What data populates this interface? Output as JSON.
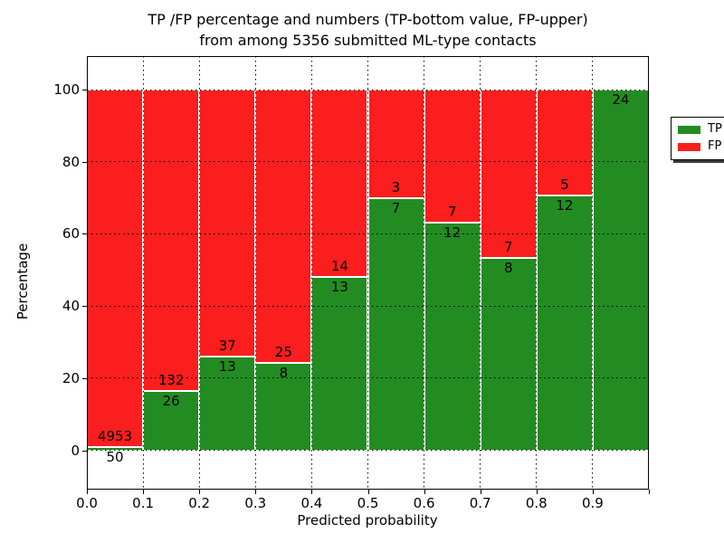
{
  "title": {
    "line1": "TP /FP percentage and numbers (TP-bottom value, FP-upper)",
    "line2": "from among 5356 submitted ML-type contacts"
  },
  "axes": {
    "xlabel": "Predicted probability",
    "ylabel": "Percentage"
  },
  "legend": {
    "position": "upper right",
    "items": [
      {
        "label": "TP",
        "color": "#228c22"
      },
      {
        "label": "FP",
        "color": "#fa1e1e"
      }
    ]
  },
  "chart_data": {
    "type": "bar",
    "stacked": true,
    "title": "TP /FP percentage and numbers (TP-bottom value, FP-upper)\nfrom among 5356 submitted ML-type contacts",
    "xlabel": "Predicted probability",
    "ylabel": "Percentage",
    "total_contacts": 5356,
    "x_tick_labels": [
      "0.0",
      "0.1",
      "0.2",
      "0.3",
      "0.4",
      "0.5",
      "0.6",
      "0.7",
      "0.8",
      "0.9"
    ],
    "y_ticks": [
      0,
      20,
      40,
      60,
      80,
      100
    ],
    "xlim": [
      0.0,
      1.0
    ],
    "ylim_display": [
      -10.9,
      109.3
    ],
    "grid": "dotted",
    "colors": {
      "tp": "#228c22",
      "fp": "#fa1e1e"
    },
    "bins": [
      {
        "x0": "0.0",
        "x1": "0.1",
        "tp": 50,
        "fp": 4953,
        "tp_pct": 1.0
      },
      {
        "x0": "0.1",
        "x1": "0.2",
        "tp": 26,
        "fp": 132,
        "tp_pct": 16.5
      },
      {
        "x0": "0.2",
        "x1": "0.3",
        "tp": 13,
        "fp": 37,
        "tp_pct": 26.0
      },
      {
        "x0": "0.3",
        "x1": "0.4",
        "tp": 8,
        "fp": 25,
        "tp_pct": 24.2
      },
      {
        "x0": "0.4",
        "x1": "0.5",
        "tp": 13,
        "fp": 14,
        "tp_pct": 48.1
      },
      {
        "x0": "0.5",
        "x1": "0.6",
        "tp": 7,
        "fp": 3,
        "tp_pct": 70.0
      },
      {
        "x0": "0.6",
        "x1": "0.7",
        "tp": 12,
        "fp": 7,
        "tp_pct": 63.2
      },
      {
        "x0": "0.7",
        "x1": "0.8",
        "tp": 8,
        "fp": 7,
        "tp_pct": 53.3
      },
      {
        "x0": "0.8",
        "x1": "0.9",
        "tp": 12,
        "fp": 5,
        "tp_pct": 70.6
      },
      {
        "x0": "0.9",
        "x1": "1.0",
        "tp": 24,
        "fp": 0,
        "tp_pct": 100.0
      }
    ]
  }
}
